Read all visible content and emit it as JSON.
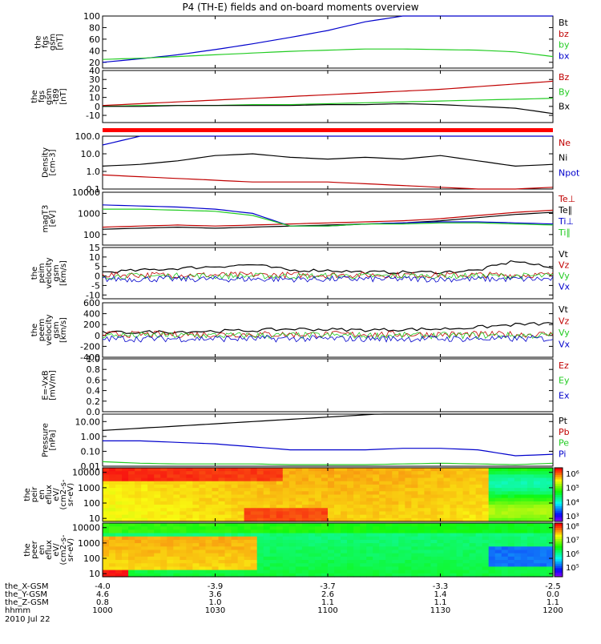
{
  "title": "P4 (TH-E) fields and on-board moments overview",
  "date": "2010 Jul 22",
  "xaxis": {
    "ticks": [
      "1000",
      "1030",
      "1100",
      "1130",
      "1200"
    ],
    "rows": [
      {
        "label": "the_X-GSM",
        "values": [
          "-4.0",
          "-3.9",
          "-3.7",
          "-3.3",
          "-2.5"
        ]
      },
      {
        "label": "the_Y-GSM",
        "values": [
          "4.6",
          "3.6",
          "2.6",
          "1.4",
          "0.0"
        ]
      },
      {
        "label": "the_Z-GSM",
        "values": [
          "0.8",
          "1.0",
          "1.1",
          "1.1",
          "1.1"
        ]
      },
      {
        "label": "hhmm",
        "values": [
          "1000",
          "1030",
          "1100",
          "1130",
          "1200"
        ]
      }
    ]
  },
  "colors": {
    "black": "#000000",
    "red": "#c00000",
    "green": "#22cc22",
    "blue": "#0000cc",
    "bright_red": "#ff0000"
  },
  "panels": [
    {
      "id": "p1",
      "ylabel": [
        "the",
        "fgs",
        "gsm",
        "[nT]"
      ],
      "ticks": [
        "100",
        "80",
        "60",
        "40",
        "20"
      ],
      "tickvals": [
        100,
        80,
        60,
        40,
        20
      ],
      "ylim": [
        10,
        100
      ],
      "legend": [
        {
          "text": "Bt",
          "color": "black"
        },
        {
          "text": "bz",
          "color": "red"
        },
        {
          "text": "by",
          "color": "green"
        },
        {
          "text": "bx",
          "color": "blue"
        }
      ]
    },
    {
      "id": "p2",
      "ylabel": [
        "the",
        "fgs",
        "gsm",
        "-t89",
        "[nT]"
      ],
      "ticks": [
        "40",
        "30",
        "20",
        "10",
        "0",
        "-10"
      ],
      "tickvals": [
        40,
        30,
        20,
        10,
        0,
        -10
      ],
      "ylim": [
        -18,
        40
      ],
      "legend": [
        {
          "text": "Bz",
          "color": "red"
        },
        {
          "text": "By",
          "color": "green"
        },
        {
          "text": "Bx",
          "color": "black"
        }
      ]
    },
    {
      "id": "p3",
      "ylabel": [
        "Density",
        "[cm-3]"
      ],
      "ticks": [
        "100.0",
        "10.0",
        "1.0",
        "0.1"
      ],
      "tickvals": [
        2,
        1,
        0,
        -1
      ],
      "ylim": [
        -1,
        2
      ],
      "log": true,
      "legend": [
        {
          "text": "Ne",
          "color": "red"
        },
        {
          "text": "Ni",
          "color": "black"
        },
        {
          "text": "Npot",
          "color": "blue"
        }
      ]
    },
    {
      "id": "p4",
      "ylabel": [
        "magT3",
        "[eV]"
      ],
      "ticks": [
        "10000",
        "1000",
        "100"
      ],
      "tickvals": [
        4,
        3,
        2
      ],
      "ylim": [
        1.5,
        4
      ],
      "log": true,
      "legend": [
        {
          "text": "Te⊥",
          "color": "red"
        },
        {
          "text": "Te∥",
          "color": "black"
        },
        {
          "text": "Ti⊥",
          "color": "blue"
        },
        {
          "text": "Ti∥",
          "color": "green"
        }
      ]
    },
    {
      "id": "p5",
      "ylabel": [
        "the",
        "peim",
        "velocity",
        "gsm",
        "[km/s]"
      ],
      "ticks": [
        "15",
        "10",
        "5",
        "0",
        "-5",
        "-10"
      ],
      "tickvals": [
        15,
        10,
        5,
        0,
        -5,
        -10
      ],
      "ylim": [
        -12,
        15
      ],
      "legend": [
        {
          "text": "Vt",
          "color": "black"
        },
        {
          "text": "Vz",
          "color": "red"
        },
        {
          "text": "Vy",
          "color": "green"
        },
        {
          "text": "Vx",
          "color": "blue"
        }
      ]
    },
    {
      "id": "p6",
      "ylabel": [
        "the",
        "peem",
        "velocity",
        "gsm",
        "[km/s]"
      ],
      "ticks": [
        "600",
        "400",
        "200",
        "0",
        "-200",
        "-400"
      ],
      "tickvals": [
        600,
        400,
        200,
        0,
        -200,
        -400
      ],
      "ylim": [
        -400,
        600
      ],
      "legend": [
        {
          "text": "Vt",
          "color": "black"
        },
        {
          "text": "Vz",
          "color": "red"
        },
        {
          "text": "Vy",
          "color": "green"
        },
        {
          "text": "Vx",
          "color": "blue"
        }
      ]
    },
    {
      "id": "p7",
      "ylabel": [
        "E=-VxB",
        "[mV/m]"
      ],
      "ticks": [
        "1.0",
        "0.8",
        "0.6",
        "0.4",
        "0.2",
        "0.0"
      ],
      "tickvals": [
        1,
        0.8,
        0.6,
        0.4,
        0.2,
        0
      ],
      "ylim": [
        0,
        1
      ],
      "legend": [
        {
          "text": "Ez",
          "color": "red"
        },
        {
          "text": "Ey",
          "color": "green"
        },
        {
          "text": "Ex",
          "color": "blue"
        }
      ]
    },
    {
      "id": "p8",
      "ylabel": [
        "Pressure",
        "[nPa]"
      ],
      "ticks": [
        "10.00",
        "1.00",
        "0.10",
        "0.01"
      ],
      "tickvals": [
        1,
        0,
        -1,
        -2
      ],
      "ylim": [
        -2,
        1.5
      ],
      "log": true,
      "legend": [
        {
          "text": "Pt",
          "color": "black"
        },
        {
          "text": "Pb",
          "color": "red"
        },
        {
          "text": "Pe",
          "color": "green"
        },
        {
          "text": "Pi",
          "color": "blue"
        }
      ]
    },
    {
      "id": "p9",
      "ylabel": [
        "the",
        "peir",
        "en",
        "eflux",
        "eV/",
        "(cm2-s-",
        "sr-eV)"
      ],
      "ticks": [
        "10000",
        "1000",
        "100",
        "10"
      ],
      "tickvals": [
        4,
        3,
        2,
        1
      ],
      "ylim": [
        0.8,
        4.3
      ],
      "log": true,
      "colorbar": {
        "labels": [
          "10⁶",
          "10⁵",
          "10⁴",
          "10³"
        ],
        "vals": [
          6,
          5,
          4,
          3
        ],
        "range": [
          2.6,
          6.4
        ]
      }
    },
    {
      "id": "p10",
      "ylabel": [
        "the",
        "peer",
        "en",
        "eflux",
        "eV/",
        "(cm2-s-",
        "sr-eV)"
      ],
      "ticks": [
        "10000",
        "1000",
        "100",
        "10"
      ],
      "tickvals": [
        4,
        3,
        2,
        1
      ],
      "ylim": [
        0.8,
        4.3
      ],
      "log": true,
      "colorbar": {
        "labels": [
          "10⁸",
          "10⁷",
          "10⁶",
          "10⁵"
        ],
        "vals": [
          8,
          7,
          6,
          5
        ],
        "range": [
          4.3,
          8.2
        ]
      }
    }
  ],
  "chart_data": {
    "type": "line",
    "title": "P4 (TH-E) fields and on-board moments overview",
    "x": [
      "1000",
      "1010",
      "1020",
      "1030",
      "1040",
      "1050",
      "1100",
      "1110",
      "1120",
      "1130",
      "1140",
      "1150",
      "1200"
    ],
    "series": [
      {
        "name": "bx",
        "panel": "p1",
        "values": [
          20,
          26,
          33,
          42,
          52,
          63,
          75,
          90,
          100,
          100,
          100,
          100,
          100
        ]
      },
      {
        "name": "by",
        "panel": "p1",
        "values": [
          25,
          27,
          30,
          33,
          36,
          39,
          41,
          43,
          43,
          42,
          41,
          38,
          30
        ]
      },
      {
        "name": "Bz",
        "panel": "p2",
        "values": [
          1,
          3,
          5,
          7,
          9,
          11,
          13,
          15,
          17,
          19,
          22,
          25,
          28
        ]
      },
      {
        "name": "By",
        "panel": "p2",
        "values": [
          0,
          1,
          1,
          1,
          2,
          2,
          3,
          4,
          5,
          6,
          7,
          8,
          9
        ]
      },
      {
        "name": "Bx",
        "panel": "p2",
        "values": [
          0,
          0,
          1,
          1,
          1,
          1,
          2,
          2,
          3,
          2,
          0,
          -2,
          -8
        ]
      },
      {
        "name": "Ni",
        "panel": "p3",
        "values": [
          0.3,
          0.4,
          0.6,
          0.9,
          1.0,
          0.8,
          0.7,
          0.8,
          0.7,
          0.9,
          0.6,
          0.3,
          0.4
        ]
      },
      {
        "name": "Ne",
        "panel": "p3",
        "values": [
          -0.2,
          -0.3,
          -0.4,
          -0.5,
          -0.6,
          -0.6,
          -0.6,
          -0.7,
          -0.8,
          -0.9,
          -1.0,
          -1.0,
          -0.9
        ]
      },
      {
        "name": "Npot",
        "panel": "p3",
        "values": [
          1.5,
          2.0,
          2.3,
          2.5,
          2.8,
          2.8,
          2.8,
          2.8,
          2.8,
          2.8,
          2.8,
          2.8,
          2.8
        ]
      },
      {
        "name": "Te⊥",
        "panel": "p4",
        "values": [
          2.35,
          2.4,
          2.45,
          2.4,
          2.45,
          2.5,
          2.55,
          2.6,
          2.65,
          2.75,
          2.9,
          3.05,
          3.15
        ]
      },
      {
        "name": "Te∥",
        "panel": "p4",
        "values": [
          2.25,
          2.3,
          2.35,
          2.3,
          2.35,
          2.4,
          2.45,
          2.5,
          2.55,
          2.65,
          2.8,
          2.95,
          3.05
        ]
      },
      {
        "name": "Ti⊥",
        "panel": "p4",
        "values": [
          3.4,
          3.35,
          3.3,
          3.2,
          3.0,
          2.4,
          2.4,
          2.5,
          2.55,
          2.6,
          2.6,
          2.55,
          2.5
        ]
      },
      {
        "name": "Ti∥",
        "panel": "p4",
        "values": [
          3.2,
          3.2,
          3.15,
          3.1,
          2.9,
          2.4,
          2.4,
          2.5,
          2.5,
          2.55,
          2.55,
          2.5,
          2.45
        ]
      },
      {
        "name": "Vt",
        "panel": "p5",
        "values": [
          2,
          3,
          4,
          5,
          6,
          3,
          3,
          2,
          2,
          2,
          3,
          8,
          4
        ]
      },
      {
        "name": "Vt",
        "panel": "p6",
        "values": [
          50,
          60,
          70,
          80,
          90,
          120,
          110,
          100,
          110,
          120,
          150,
          200,
          220
        ]
      },
      {
        "name": "Pt",
        "panel": "p8",
        "values": [
          0.4,
          0.55,
          0.7,
          0.85,
          1.0,
          1.15,
          1.3,
          1.45,
          1.6,
          1.75,
          1.9,
          2.05,
          2.2
        ]
      },
      {
        "name": "Pi",
        "panel": "p8",
        "values": [
          -0.3,
          -0.3,
          -0.4,
          -0.5,
          -0.7,
          -0.9,
          -0.9,
          -0.9,
          -0.8,
          -0.8,
          -0.9,
          -1.3,
          -1.2
        ]
      },
      {
        "name": "Pe",
        "panel": "p8",
        "values": [
          -1.7,
          -1.8,
          -1.85,
          -1.85,
          -1.85,
          -1.9,
          -1.9,
          -1.9,
          -1.85,
          -1.8,
          -1.85,
          -1.9,
          -1.8
        ]
      }
    ]
  }
}
